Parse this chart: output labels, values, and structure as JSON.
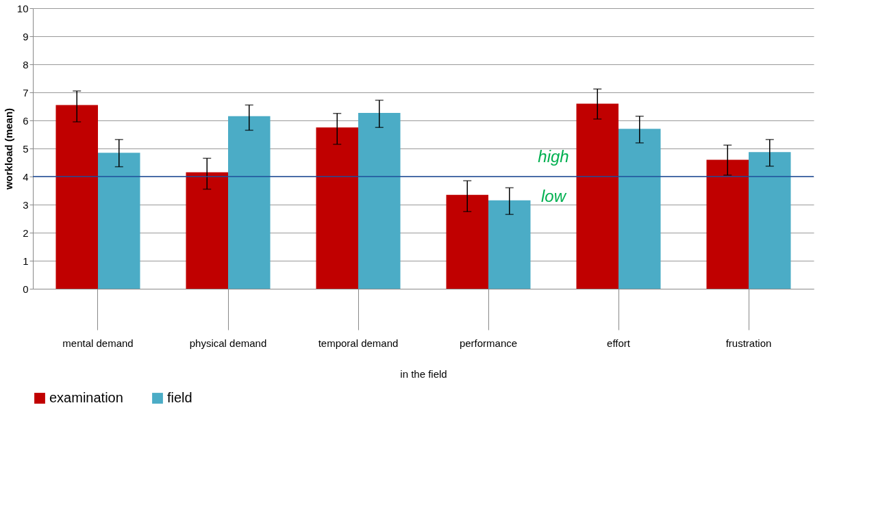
{
  "chart_data": {
    "type": "bar",
    "ylabel": "workload (mean)",
    "xlabel": "in the field",
    "categories": [
      "mental demand",
      "physical demand",
      "temporal demand",
      "performance",
      "effort",
      "frustration"
    ],
    "series": [
      {
        "name": "examination",
        "color": "#c00000",
        "values": [
          6.55,
          4.15,
          5.75,
          3.35,
          6.6,
          4.6
        ],
        "errors": [
          [
            5.95,
            7.05
          ],
          [
            3.55,
            4.65
          ],
          [
            5.15,
            6.25
          ],
          [
            2.75,
            3.85
          ],
          [
            6.05,
            7.12
          ],
          [
            4.05,
            5.12
          ]
        ]
      },
      {
        "name": "field",
        "color": "#4bacc6",
        "values": [
          4.85,
          6.15,
          6.27,
          3.15,
          5.7,
          4.87
        ],
        "errors": [
          [
            4.35,
            5.32
          ],
          [
            5.65,
            6.55
          ],
          [
            5.75,
            6.72
          ],
          [
            2.65,
            3.6
          ],
          [
            5.2,
            6.15
          ],
          [
            4.37,
            5.32
          ]
        ]
      }
    ],
    "ylim": [
      0,
      10
    ],
    "yticks": [
      0,
      1,
      2,
      3,
      4,
      5,
      6,
      7,
      8,
      9,
      10
    ],
    "grid": "y",
    "legend": "bottom",
    "ref_lines": [
      {
        "axis": "y",
        "value": 4,
        "color": "#1f4e9a"
      }
    ],
    "annotations": [
      "high",
      "low"
    ]
  }
}
